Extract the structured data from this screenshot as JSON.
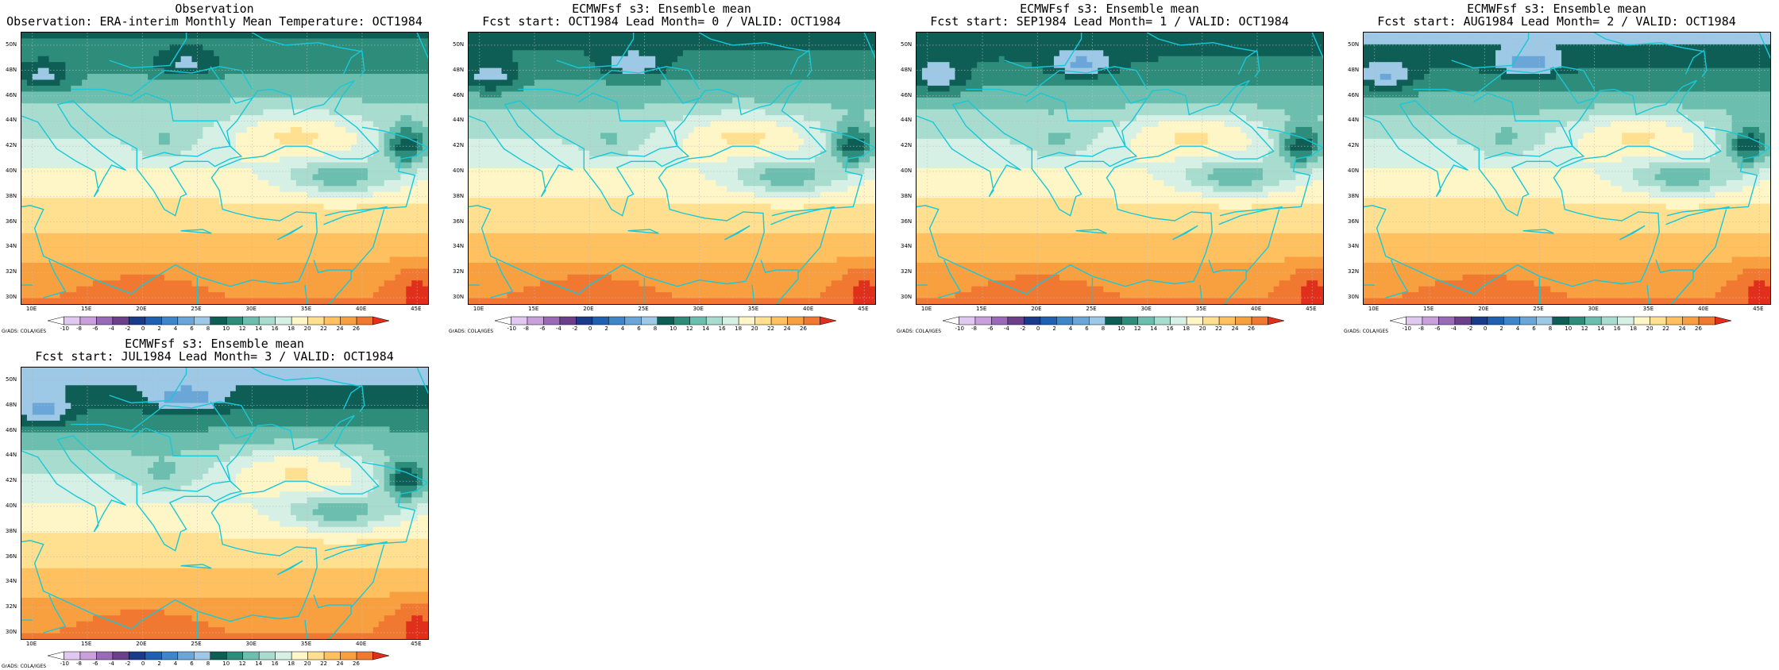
{
  "panels": [
    {
      "title1": "Observation",
      "title2": "Observation: ERA-interim Monthly Mean Temperature: OCT1984",
      "variant": 0
    },
    {
      "title1": "ECMWFsf s3: Ensemble mean",
      "title2": "Fcst start: OCT1984  Lead Month= 0 / VALID: OCT1984",
      "variant": 1
    },
    {
      "title1": "ECMWFsf s3: Ensemble mean",
      "title2": "Fcst start: SEP1984  Lead Month= 1 / VALID: OCT1984",
      "variant": 2
    },
    {
      "title1": "ECMWFsf s3: Ensemble mean",
      "title2": "Fcst start: AUG1984  Lead Month= 2 / VALID: OCT1984",
      "variant": 3
    },
    {
      "title1": "ECMWFsf s3: Ensemble mean",
      "title2": "Fcst start: JUL1984  Lead Month= 3 / VALID: OCT1984",
      "variant": 4
    }
  ],
  "map_axes": {
    "lat_labels": [
      "50N",
      "48N",
      "46N",
      "44N",
      "42N",
      "40N",
      "38N",
      "36N",
      "34N",
      "32N",
      "30N"
    ],
    "lon_labels": [
      "10E",
      "15E",
      "20E",
      "25E",
      "30E",
      "35E",
      "40E",
      "45E"
    ],
    "lon_range": [
      9,
      46
    ],
    "lat_range": [
      29.5,
      51
    ]
  },
  "colorbar": {
    "credit": "GrADS: COLA/IGES",
    "levels": [
      "-10",
      "-8",
      "-6",
      "-4",
      "-2",
      "0",
      "2",
      "4",
      "6",
      "8",
      "10",
      "12",
      "14",
      "16",
      "18",
      "20",
      "22",
      "24",
      "26"
    ],
    "colors": [
      "#ffffff",
      "#e0c8f0",
      "#c9a0dc",
      "#9a6ab8",
      "#6b3f8a",
      "#1a3a8a",
      "#2060b0",
      "#3f86c8",
      "#6aa6d8",
      "#9dc8e6",
      "#0e5e56",
      "#2e8c7a",
      "#6cbfae",
      "#a8dccf",
      "#d6f0e6",
      "#fff6c8",
      "#ffe090",
      "#ffc060",
      "#f8a040",
      "#f07830",
      "#e0301c"
    ]
  }
}
